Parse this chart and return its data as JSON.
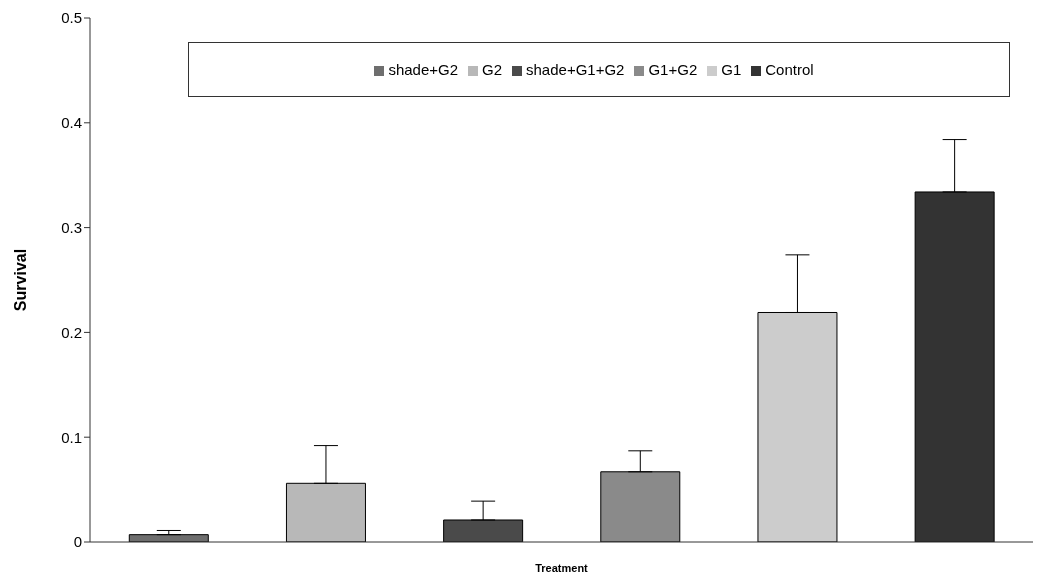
{
  "chart_data": {
    "type": "bar",
    "xlabel": "Treatment",
    "ylabel": "Survival",
    "categories": [
      null,
      null,
      null,
      null,
      null,
      null
    ],
    "series": [
      {
        "name": "shade+G2",
        "color": "#6e6e6e",
        "values": [
          0.007,
          null,
          null,
          null,
          null,
          null
        ],
        "errors": [
          [
            0.007,
            0.011
          ],
          null,
          null,
          null,
          null,
          null
        ]
      },
      {
        "name": "G2",
        "color": "#b8b8b8",
        "values": [
          null,
          0.056,
          null,
          null,
          null,
          null
        ],
        "errors": [
          null,
          [
            0.056,
            0.092
          ],
          null,
          null,
          null,
          null
        ]
      },
      {
        "name": "shade+G1+G2",
        "color": "#4a4a4a",
        "values": [
          null,
          null,
          0.021,
          null,
          null,
          null
        ],
        "errors": [
          null,
          null,
          [
            0.021,
            0.039
          ],
          null,
          null,
          null
        ]
      },
      {
        "name": "G1+G2",
        "color": "#8a8a8a",
        "values": [
          null,
          null,
          null,
          0.067,
          null,
          null
        ],
        "errors": [
          null,
          null,
          null,
          [
            0.067,
            0.087
          ],
          null,
          null
        ]
      },
      {
        "name": "G1",
        "color": "#cccccc",
        "values": [
          null,
          null,
          null,
          null,
          0.219,
          null
        ],
        "errors": [
          null,
          null,
          null,
          null,
          [
            0.219,
            0.274
          ],
          null
        ]
      },
      {
        "name": "Control",
        "color": "#333333",
        "values": [
          null,
          null,
          null,
          null,
          null,
          0.334
        ],
        "errors": [
          null,
          null,
          null,
          null,
          null,
          [
            0.334,
            0.384
          ]
        ]
      }
    ],
    "ylim": [
      0,
      0.5
    ],
    "yticks": [
      0,
      0.1,
      0.2,
      0.3,
      0.4,
      0.5
    ],
    "grid": false,
    "legend": "top"
  }
}
